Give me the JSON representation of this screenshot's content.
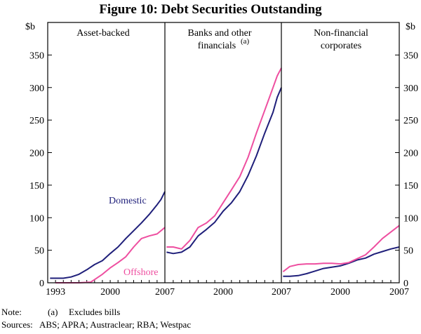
{
  "chart_data": {
    "type": "line",
    "title": "Figure 10: Debt Securities Outstanding",
    "y_unit_left": "$b",
    "y_unit_right": "$b",
    "ylim": [
      0,
      350
    ],
    "yticks": [
      0,
      50,
      100,
      150,
      200,
      250,
      300,
      350
    ],
    "colors": {
      "domestic": "#1f1f7a",
      "offshore": "#ee4fa0"
    },
    "panels": [
      {
        "title_lines": [
          "Asset-backed"
        ],
        "xlim": [
          1992,
          2007
        ],
        "xticks": [
          1993,
          2000,
          2007
        ],
        "series": [
          {
            "name": "Domestic",
            "x": [
              1992.3,
              1994,
              1995,
              1996,
              1997,
              1998,
              1999,
              2000,
              2001,
              2002,
              2003,
              2004,
              2005,
              2006,
              2006.5,
              2007
            ],
            "y": [
              7,
              7,
              9,
              13,
              20,
              28,
              34,
              45,
              55,
              68,
              80,
              92,
              105,
              120,
              128,
              140
            ]
          },
          {
            "name": "Offshore",
            "x": [
              1993,
              1996,
              1997.5,
              1998,
              1999,
              2000,
              2001,
              2002,
              2003,
              2004,
              2005,
              2006,
              2007
            ],
            "y": [
              0,
              0,
              1,
              5,
              13,
              23,
              31,
              40,
              55,
              68,
              72,
              75,
              85
            ]
          }
        ],
        "labels": [
          "Domestic",
          "Offshore"
        ]
      },
      {
        "title_lines": [
          "Banks and other",
          "financials"
        ],
        "title_superscript": "(a)",
        "xlim": [
          1993,
          2007
        ],
        "xticks": [
          2000,
          2007
        ],
        "series": [
          {
            "name": "Domestic",
            "x": [
              1993.2,
              1994,
              1995,
              1996,
              1997,
              1998,
              1999,
              2000,
              2001,
              2002,
              2003,
              2004,
              2005,
              2006,
              2006.5,
              2007
            ],
            "y": [
              47,
              45,
              47,
              55,
              72,
              82,
              93,
              110,
              123,
              140,
              165,
              195,
              230,
              262,
              285,
              300
            ]
          },
          {
            "name": "Offshore",
            "x": [
              1993.2,
              1994,
              1995,
              1996,
              1997,
              1998,
              1999,
              2000,
              2001,
              2002,
              2003,
              2004,
              2005,
              2006,
              2006.5,
              2007
            ],
            "y": [
              55,
              55,
              52,
              65,
              85,
              92,
              103,
              123,
              143,
              163,
              193,
              230,
              265,
              300,
              318,
              330
            ]
          }
        ]
      },
      {
        "title_lines": [
          "Non-financial",
          "corporates"
        ],
        "xlim": [
          1993,
          2007
        ],
        "xticks": [
          2000,
          2007
        ],
        "series": [
          {
            "name": "Domestic",
            "x": [
              1993.2,
              1994,
              1995,
              1996,
              1997,
              1998,
              1999,
              2000,
              2001,
              2002,
              2003,
              2004,
              2005,
              2006,
              2007
            ],
            "y": [
              10,
              10,
              11,
              14,
              18,
              22,
              24,
              26,
              30,
              35,
              38,
              44,
              48,
              52,
              55
            ]
          },
          {
            "name": "Offshore",
            "x": [
              1993.2,
              1994,
              1995,
              1996,
              1997,
              1998,
              1999,
              2000,
              2001,
              2002,
              2003,
              2004,
              2005,
              2006,
              2007
            ],
            "y": [
              17,
              25,
              28,
              29,
              29,
              30,
              30,
              29,
              31,
              37,
              43,
              55,
              68,
              78,
              88
            ]
          }
        ]
      }
    ]
  },
  "notes": {
    "note_label": "Note:",
    "note_marker": "(a)",
    "note_text": "Excludes bills",
    "sources_label": "Sources:",
    "sources_text": "ABS; APRA; Austraclear; RBA; Westpac"
  }
}
